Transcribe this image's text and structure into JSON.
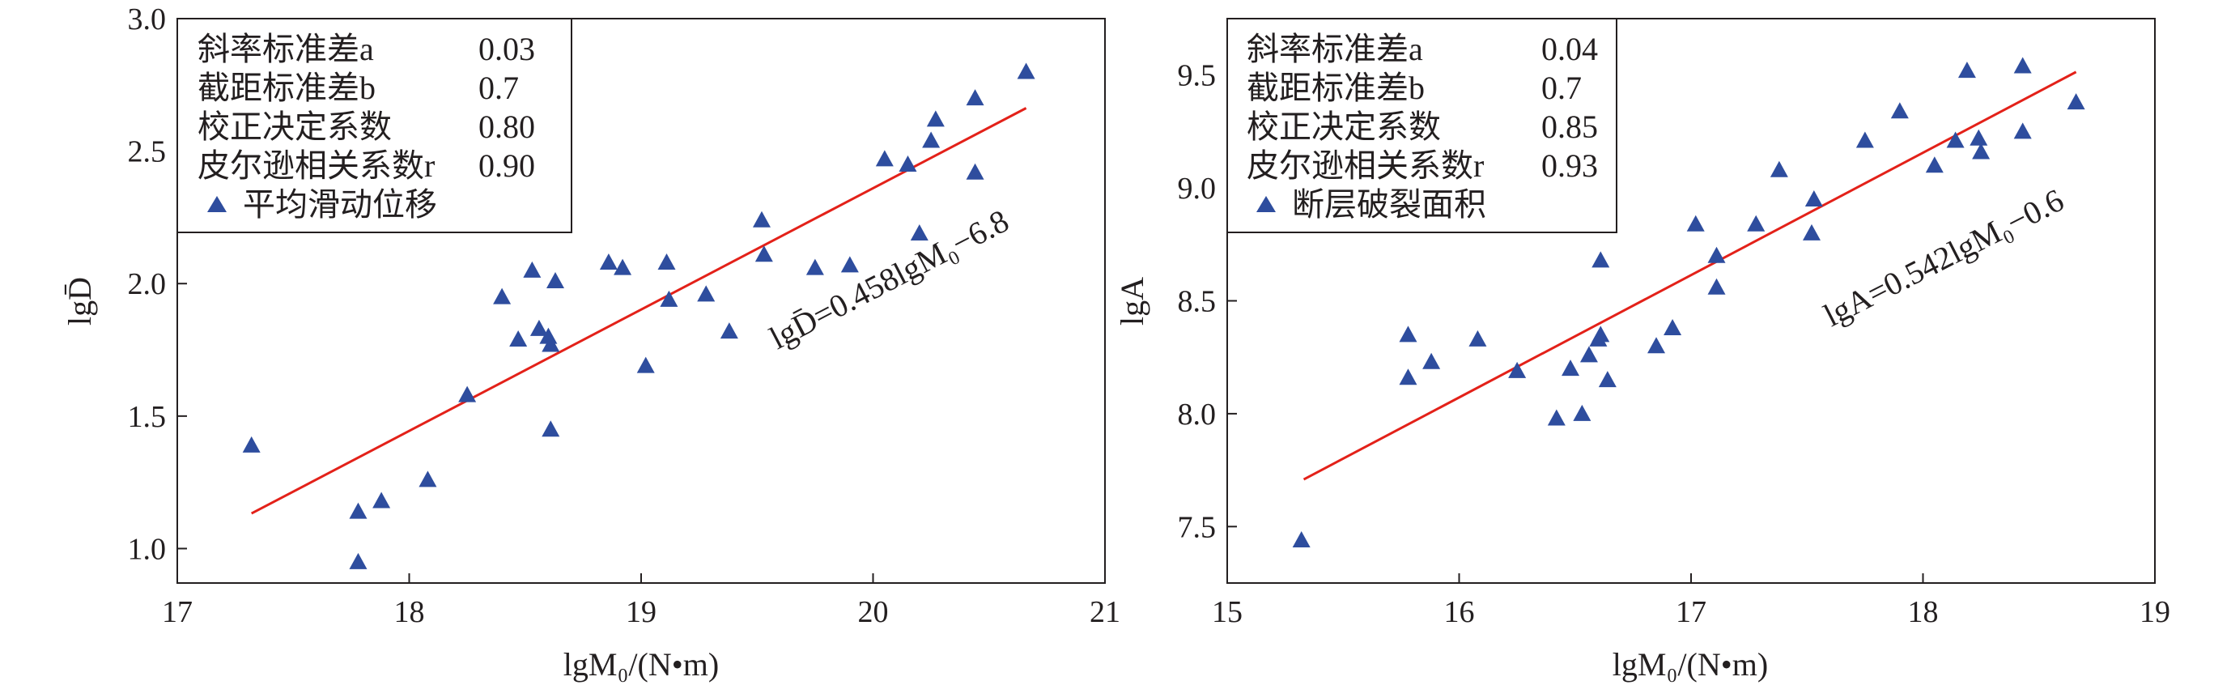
{
  "chart_data": [
    {
      "type": "scatter",
      "xlabel": "lgM₀/(N•m)",
      "ylabel": "lgD̄",
      "xlim": [
        17,
        21
      ],
      "ylim": [
        0.87,
        3.0
      ],
      "xticks": [
        "17",
        "18",
        "19",
        "20",
        "21"
      ],
      "yticks": [
        "1.0",
        "1.5",
        "2.0",
        "2.5",
        "3.0"
      ],
      "stats": [
        {
          "label": "斜率标准差a",
          "value": "0.03"
        },
        {
          "label": "截距标准差b",
          "value": "0.7"
        },
        {
          "label": "校正决定系数",
          "value": "0.80"
        },
        {
          "label": "皮尔逊相关系数r",
          "value": "0.90"
        }
      ],
      "legend": "平均滑动位移",
      "equation": "lgD̄=0.458lgM₀−6.8",
      "fit": {
        "slope": 0.458,
        "intercept": -6.8,
        "x_range": [
          17.32,
          20.66
        ]
      },
      "marker_color": "#2e4d9e",
      "line_color": "#e32119",
      "series": [
        {
          "name": "平均滑动位移",
          "points": [
            [
              17.32,
              1.39
            ],
            [
              17.78,
              0.95
            ],
            [
              17.78,
              1.14
            ],
            [
              17.88,
              1.18
            ],
            [
              18.08,
              1.26
            ],
            [
              18.25,
              1.58
            ],
            [
              18.4,
              1.95
            ],
            [
              18.47,
              1.79
            ],
            [
              18.53,
              2.05
            ],
            [
              18.56,
              1.83
            ],
            [
              18.6,
              1.8
            ],
            [
              18.61,
              1.77
            ],
            [
              18.61,
              1.45
            ],
            [
              18.63,
              2.01
            ],
            [
              18.86,
              2.08
            ],
            [
              18.92,
              2.06
            ],
            [
              19.02,
              1.69
            ],
            [
              19.11,
              2.08
            ],
            [
              19.12,
              1.94
            ],
            [
              19.28,
              1.96
            ],
            [
              19.38,
              1.82
            ],
            [
              19.52,
              2.24
            ],
            [
              19.53,
              2.11
            ],
            [
              19.75,
              2.06
            ],
            [
              19.9,
              2.07
            ],
            [
              20.05,
              2.47
            ],
            [
              20.15,
              2.45
            ],
            [
              20.2,
              2.19
            ],
            [
              20.25,
              2.54
            ],
            [
              20.27,
              2.62
            ],
            [
              20.44,
              2.7
            ],
            [
              20.44,
              2.42
            ],
            [
              20.66,
              2.8
            ]
          ]
        }
      ]
    },
    {
      "type": "scatter",
      "xlabel": "lgM₀/(N•m)",
      "ylabel": "lgA",
      "xlim": [
        15,
        19
      ],
      "ylim": [
        7.25,
        9.75
      ],
      "xticks": [
        "15",
        "16",
        "17",
        "18",
        "19"
      ],
      "yticks": [
        "7.5",
        "8.0",
        "8.5",
        "9.0",
        "9.5"
      ],
      "stats": [
        {
          "label": "斜率标准差a",
          "value": "0.04"
        },
        {
          "label": "截距标准差b",
          "value": "0.7"
        },
        {
          "label": "校正决定系数",
          "value": "0.85"
        },
        {
          "label": "皮尔逊相关系数r",
          "value": "0.93"
        }
      ],
      "legend": "断层破裂面积",
      "equation": "lgA=0.542lgM₀−0.6",
      "fit": {
        "slope": 0.542,
        "intercept": -0.6,
        "x_range": [
          15.33,
          18.66
        ]
      },
      "marker_color": "#2e4d9e",
      "line_color": "#e32119",
      "series": [
        {
          "name": "断层破裂面积",
          "points": [
            [
              15.32,
              7.44
            ],
            [
              15.78,
              8.35
            ],
            [
              15.78,
              8.16
            ],
            [
              15.88,
              8.23
            ],
            [
              16.08,
              8.33
            ],
            [
              16.25,
              8.19
            ],
            [
              16.42,
              7.98
            ],
            [
              16.48,
              8.2
            ],
            [
              16.53,
              8.0
            ],
            [
              16.56,
              8.26
            ],
            [
              16.6,
              8.33
            ],
            [
              16.61,
              8.35
            ],
            [
              16.61,
              8.68
            ],
            [
              16.64,
              8.15
            ],
            [
              16.85,
              8.3
            ],
            [
              16.92,
              8.38
            ],
            [
              17.02,
              8.84
            ],
            [
              17.11,
              8.7
            ],
            [
              17.11,
              8.56
            ],
            [
              17.28,
              8.84
            ],
            [
              17.38,
              9.08
            ],
            [
              17.52,
              8.8
            ],
            [
              17.53,
              8.95
            ],
            [
              17.75,
              9.21
            ],
            [
              17.9,
              9.34
            ],
            [
              18.05,
              9.1
            ],
            [
              18.14,
              9.21
            ],
            [
              18.19,
              9.52
            ],
            [
              18.24,
              9.22
            ],
            [
              18.25,
              9.16
            ],
            [
              18.43,
              9.54
            ],
            [
              18.43,
              9.25
            ],
            [
              18.66,
              9.38
            ]
          ]
        }
      ]
    }
  ]
}
